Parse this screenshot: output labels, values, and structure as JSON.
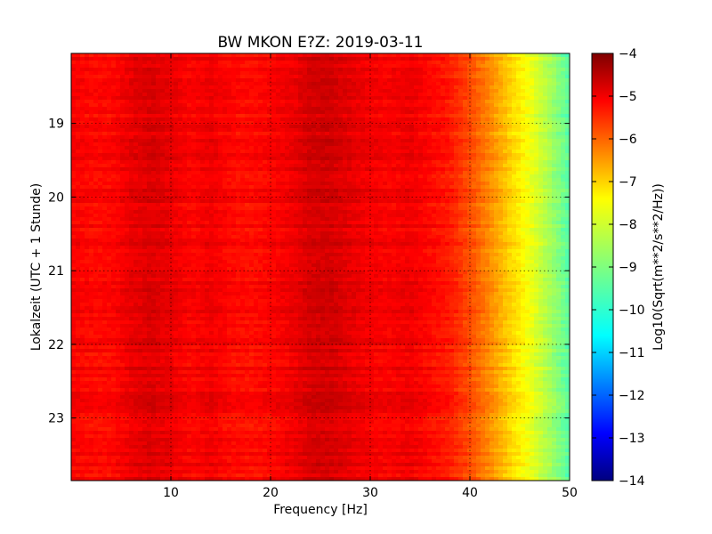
{
  "chart_data": {
    "type": "heatmap",
    "title": "BW MKON E?Z: 2019-03-11",
    "xlabel": "Frequency [Hz]",
    "ylabel": "Lokalzeit (UTC + 1 Stunde)",
    "colorbar_label": "Log10(Sqrt(m**2/s**2/Hz))",
    "xlim": [
      0,
      50
    ],
    "ylim": [
      18.05,
      23.85
    ],
    "y_inverted": true,
    "x_ticks": [
      10,
      20,
      30,
      40,
      50
    ],
    "y_ticks": [
      19,
      20,
      21,
      22,
      23
    ],
    "colorbar_range": [
      -14,
      -4
    ],
    "colorbar_ticks": [
      -4,
      -5,
      -6,
      -7,
      -8,
      -9,
      -10,
      -11,
      -12,
      -13,
      -14
    ],
    "colormap": "jet",
    "grid": true,
    "spectrum_profile": {
      "frequency_hz": [
        0,
        2,
        4,
        6,
        8,
        10,
        12,
        14,
        16,
        18,
        20,
        22,
        24,
        26,
        28,
        30,
        32,
        34,
        36,
        38,
        40,
        42,
        44,
        46,
        48,
        50
      ],
      "log10_amplitude": [
        -5.2,
        -5.3,
        -5.3,
        -5.05,
        -4.9,
        -5.05,
        -5.25,
        -5.1,
        -5.3,
        -5.35,
        -5.25,
        -5.1,
        -4.85,
        -4.8,
        -5.0,
        -5.15,
        -5.2,
        -5.1,
        -5.3,
        -5.5,
        -6.0,
        -6.6,
        -7.3,
        -7.9,
        -8.6,
        -9.4
      ]
    }
  }
}
